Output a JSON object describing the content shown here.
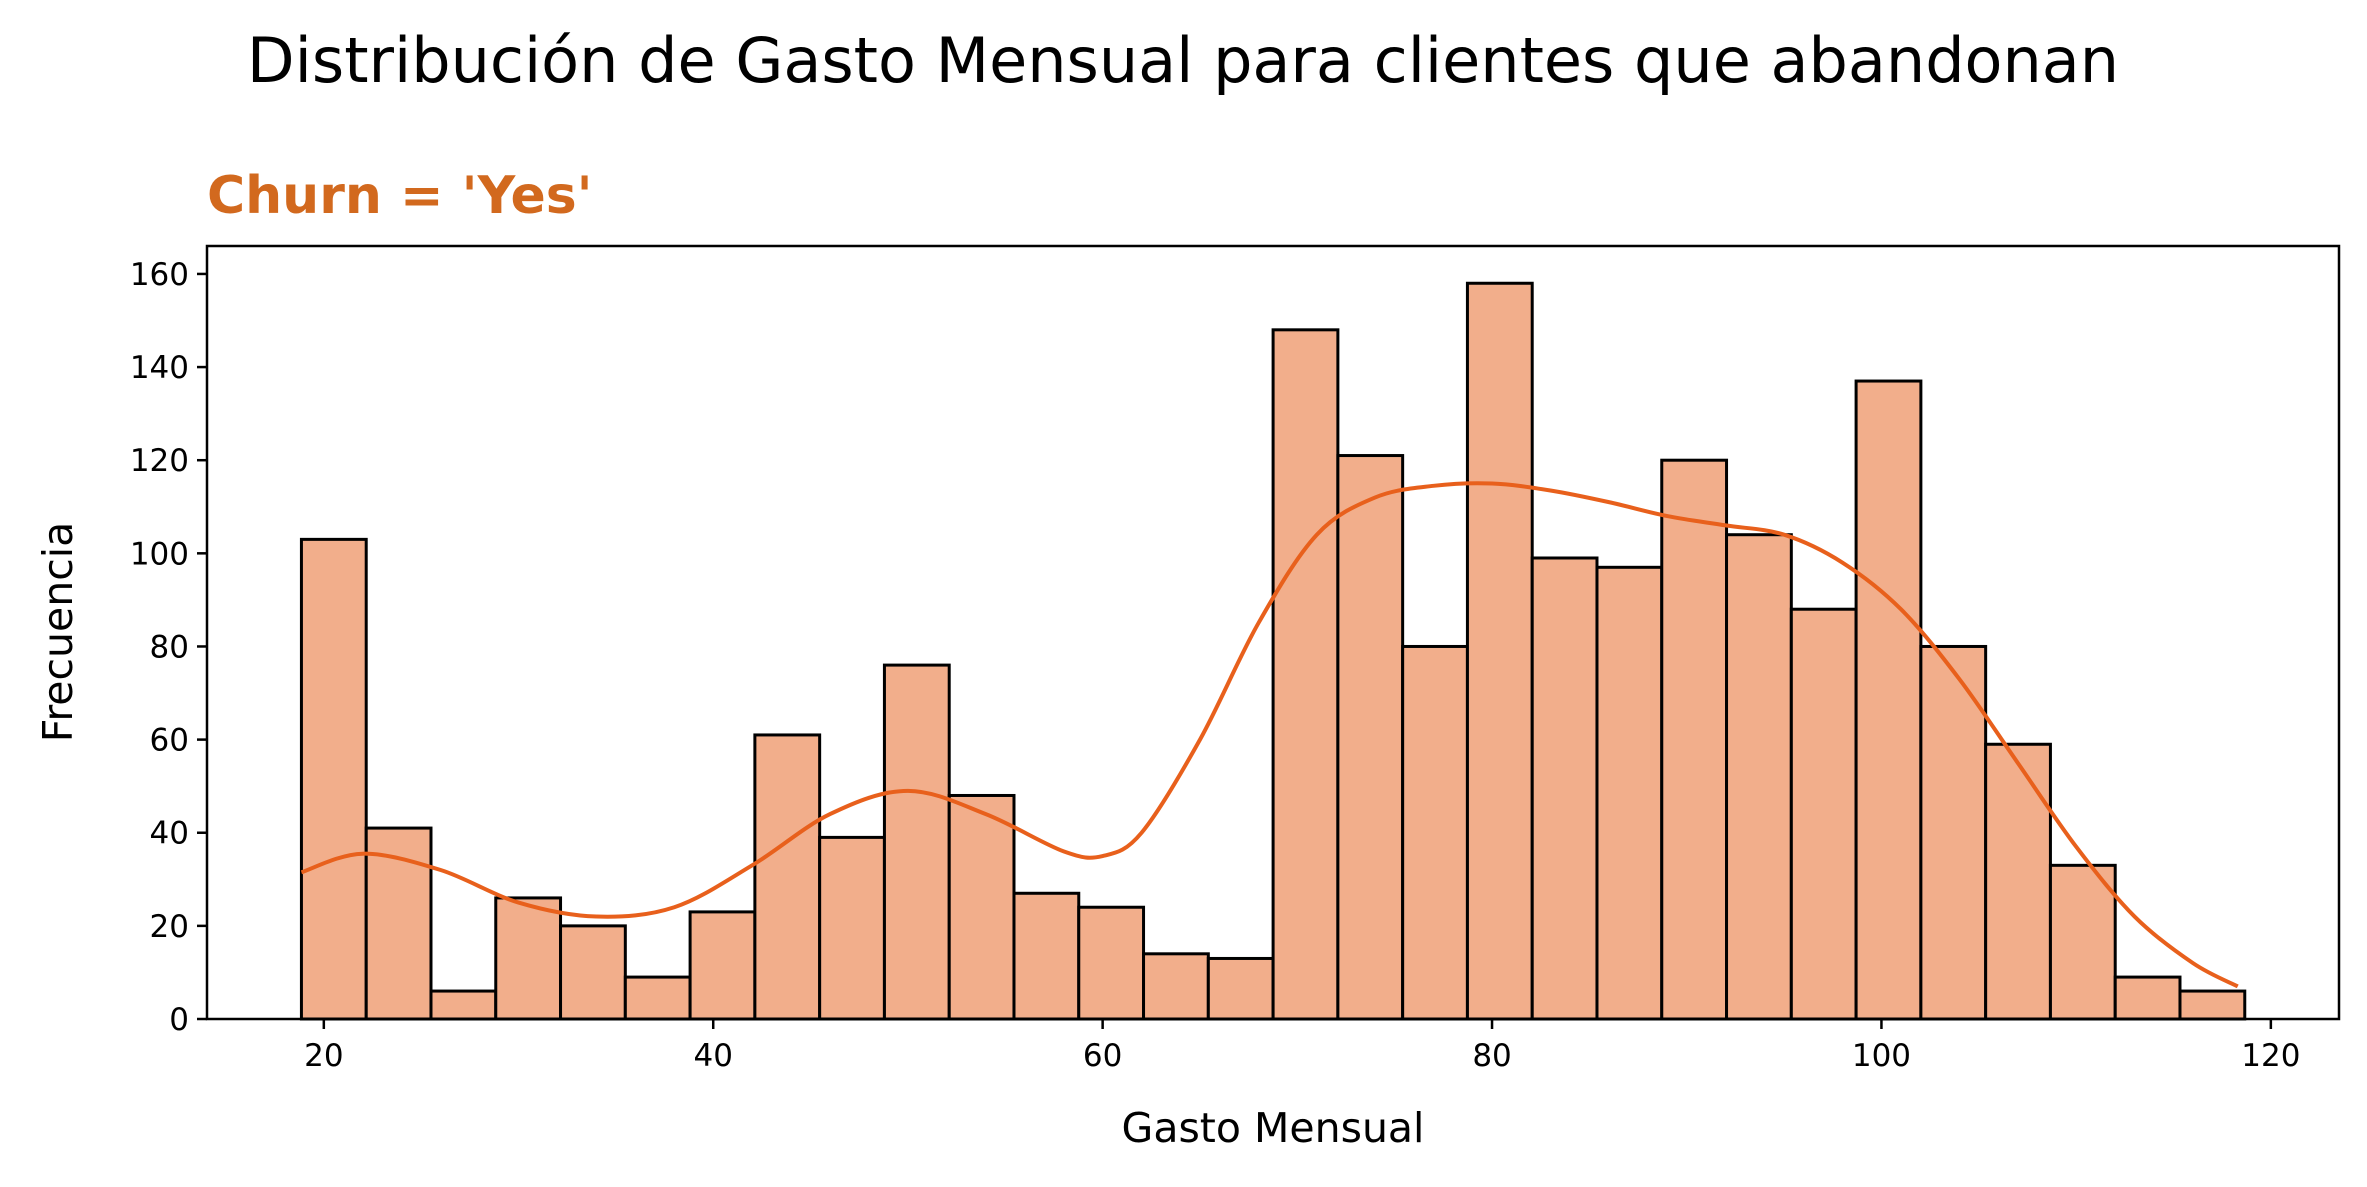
{
  "chart_data": {
    "type": "bar",
    "title": "Distribución de Gasto Mensual para clientes que abandonan",
    "subtitle": "Churn = 'Yes'",
    "xlabel": "Gasto Mensual",
    "ylabel": "Frecuencia",
    "xlim": [
      14,
      123.5
    ],
    "ylim": [
      0,
      166
    ],
    "xticks": [
      20,
      40,
      60,
      80,
      100,
      120
    ],
    "yticks": [
      0,
      20,
      40,
      60,
      80,
      100,
      120,
      140,
      160
    ],
    "bin_start": 18.85,
    "bin_width": 3.327,
    "values": [
      103,
      41,
      6,
      26,
      20,
      9,
      23,
      61,
      39,
      76,
      48,
      27,
      24,
      14,
      13,
      148,
      121,
      80,
      158,
      99,
      97,
      120,
      104,
      88,
      137,
      80,
      59,
      33,
      9,
      6
    ],
    "kde": {
      "x": [
        18.85,
        22,
        26,
        30,
        34,
        38,
        42,
        46,
        50,
        54,
        58,
        60,
        62,
        65,
        68,
        71,
        74,
        77,
        80,
        83,
        86,
        89,
        92,
        95,
        98,
        101,
        104,
        107,
        110,
        113,
        116,
        118.3
      ],
      "y": [
        31.5,
        35.5,
        32,
        25,
        22,
        24,
        33,
        44,
        49,
        44,
        36,
        35,
        40,
        60,
        85,
        104,
        112,
        114.5,
        115,
        113.5,
        111,
        108,
        106,
        104,
        98,
        88,
        73,
        55,
        37,
        22,
        12,
        7
      ]
    },
    "colors": {
      "bar_fill": "#f2ae8b",
      "bar_edge": "#000000",
      "kde_line": "#e8601c",
      "subtitle": "#d2691e"
    },
    "grid": false,
    "legend": "none"
  }
}
